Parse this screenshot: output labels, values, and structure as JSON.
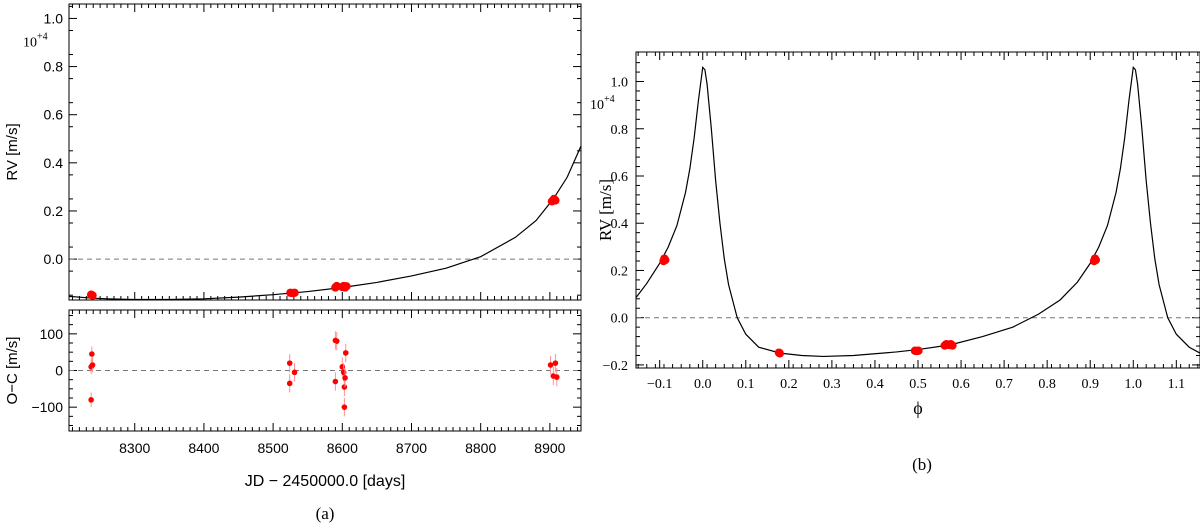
{
  "chart_data": [
    {
      "type": "line",
      "subplot": "top",
      "xlim": [
        8205,
        8945
      ],
      "ylim": [
        -0.17,
        1.06
      ],
      "ylabel": "RV [m/s]",
      "y_multiplier": "10",
      "y_exponent": "+4",
      "yticks": [
        0.0,
        0.2,
        0.4,
        0.6,
        0.8,
        1.0
      ],
      "ytick_labels": [
        "0.0",
        "0.2",
        "0.4",
        "0.6",
        "0.8",
        "1.0"
      ],
      "zero_line": "dashed",
      "model_curve": {
        "x": [
          8205,
          8237,
          8260,
          8300,
          8350,
          8400,
          8450,
          8500,
          8550,
          8600,
          8650,
          8700,
          8750,
          8800,
          8850,
          8880,
          8905,
          8925,
          8945
        ],
        "y": [
          -0.155,
          -0.162,
          -0.165,
          -0.168,
          -0.168,
          -0.165,
          -0.158,
          -0.148,
          -0.135,
          -0.118,
          -0.097,
          -0.07,
          -0.038,
          0.01,
          0.09,
          0.16,
          0.25,
          0.34,
          0.47
        ]
      },
      "points": [
        {
          "x": 8237,
          "y": -0.148
        },
        {
          "x": 8238,
          "y": -0.15
        },
        {
          "x": 8239,
          "y": -0.151
        },
        {
          "x": 8525,
          "y": -0.14
        },
        {
          "x": 8528,
          "y": -0.141
        },
        {
          "x": 8531,
          "y": -0.14
        },
        {
          "x": 8590,
          "y": -0.118
        },
        {
          "x": 8592,
          "y": -0.112
        },
        {
          "x": 8600,
          "y": -0.116
        },
        {
          "x": 8602,
          "y": -0.112
        },
        {
          "x": 8604,
          "y": -0.118
        },
        {
          "x": 8606,
          "y": -0.113
        },
        {
          "x": 8903,
          "y": 0.24
        },
        {
          "x": 8906,
          "y": 0.25
        },
        {
          "x": 8908,
          "y": 0.244
        }
      ]
    },
    {
      "type": "scatter",
      "subplot": "bottom",
      "xlim": [
        8205,
        8945
      ],
      "ylim": [
        -165,
        165
      ],
      "xlabel": "JD − 2450000.0 [days]",
      "ylabel": "O−C [m/s]",
      "xticks": [
        8300,
        8400,
        8500,
        8600,
        8700,
        8800,
        8900
      ],
      "xtick_labels": [
        "8300",
        "8400",
        "8500",
        "8600",
        "8700",
        "8800",
        "8900"
      ],
      "yticks": [
        -100,
        0,
        100
      ],
      "ytick_labels": [
        "−100",
        "0",
        "100"
      ],
      "zero_line": "dashed",
      "points": [
        {
          "x": 8237,
          "y": 10,
          "err": 20
        },
        {
          "x": 8238,
          "y": 45,
          "err": 20
        },
        {
          "x": 8237,
          "y": -80,
          "err": 20
        },
        {
          "x": 8239,
          "y": 15,
          "err": 20
        },
        {
          "x": 8524,
          "y": 20,
          "err": 25
        },
        {
          "x": 8524,
          "y": -35,
          "err": 25
        },
        {
          "x": 8531,
          "y": -5,
          "err": 25
        },
        {
          "x": 8592,
          "y": 80,
          "err": 25
        },
        {
          "x": 8590,
          "y": 82,
          "err": 25
        },
        {
          "x": 8590,
          "y": -30,
          "err": 25
        },
        {
          "x": 8600,
          "y": 10,
          "err": 25
        },
        {
          "x": 8602,
          "y": -5,
          "err": 25
        },
        {
          "x": 8603,
          "y": -45,
          "err": 25
        },
        {
          "x": 8605,
          "y": 48,
          "err": 25
        },
        {
          "x": 8603,
          "y": -100,
          "err": 25
        },
        {
          "x": 8604,
          "y": -20,
          "err": 25
        },
        {
          "x": 8901,
          "y": 15,
          "err": 25
        },
        {
          "x": 8905,
          "y": -15,
          "err": 25
        },
        {
          "x": 8908,
          "y": 20,
          "err": 25
        },
        {
          "x": 8910,
          "y": -18,
          "err": 25
        }
      ]
    },
    {
      "type": "line",
      "subplot": "phase",
      "xlim": [
        -0.155,
        1.155
      ],
      "ylim": [
        -0.213,
        1.125
      ],
      "xlabel": "ϕ",
      "ylabel": "RV [m/s]",
      "y_multiplier": "10",
      "y_exponent": "+4",
      "xticks": [
        -0.1,
        0.0,
        0.1,
        0.2,
        0.3,
        0.4,
        0.5,
        0.6,
        0.7,
        0.8,
        0.9,
        1.0,
        1.1
      ],
      "xtick_labels": [
        "−0.1",
        "0.0",
        "0.1",
        "0.2",
        "0.3",
        "0.4",
        "0.5",
        "0.6",
        "0.7",
        "0.8",
        "0.9",
        "1.0",
        "1.1"
      ],
      "yticks": [
        -0.2,
        0.0,
        0.2,
        0.4,
        0.6,
        0.8,
        1.0
      ],
      "ytick_labels": [
        "−0.2",
        "0.0",
        "0.2",
        "0.4",
        "0.6",
        "0.8",
        "1.0"
      ],
      "zero_line": "dashed",
      "model_curve": {
        "x": [
          -0.155,
          -0.13,
          -0.1,
          -0.08,
          -0.06,
          -0.04,
          -0.03,
          -0.02,
          -0.01,
          0.0,
          0.005,
          0.01,
          0.02,
          0.03,
          0.04,
          0.05,
          0.06,
          0.08,
          0.1,
          0.13,
          0.18,
          0.23,
          0.28,
          0.35,
          0.45,
          0.5,
          0.575,
          0.65,
          0.72,
          0.78,
          0.83,
          0.87,
          0.9,
          0.92,
          0.94,
          0.96,
          0.97,
          0.98,
          0.99,
          1.0,
          1.005,
          1.01,
          1.02,
          1.03,
          1.04,
          1.05,
          1.06,
          1.08,
          1.1,
          1.13,
          1.155
        ],
        "y": [
          0.085,
          0.145,
          0.23,
          0.3,
          0.39,
          0.53,
          0.63,
          0.76,
          0.92,
          1.06,
          1.05,
          0.99,
          0.8,
          0.58,
          0.4,
          0.25,
          0.14,
          0.0,
          -0.07,
          -0.125,
          -0.15,
          -0.16,
          -0.164,
          -0.16,
          -0.145,
          -0.135,
          -0.115,
          -0.08,
          -0.04,
          0.015,
          0.075,
          0.15,
          0.23,
          0.3,
          0.39,
          0.53,
          0.63,
          0.76,
          0.92,
          1.06,
          1.05,
          0.99,
          0.8,
          0.58,
          0.4,
          0.25,
          0.14,
          0.0,
          -0.07,
          -0.125,
          -0.15
        ]
      },
      "points": [
        {
          "x": -0.091,
          "y": 0.24
        },
        {
          "x": -0.089,
          "y": 0.25
        },
        {
          "x": -0.087,
          "y": 0.244
        },
        {
          "x": 0.177,
          "y": -0.148
        },
        {
          "x": 0.179,
          "y": -0.151
        },
        {
          "x": 0.493,
          "y": -0.14
        },
        {
          "x": 0.497,
          "y": -0.141
        },
        {
          "x": 0.501,
          "y": -0.14
        },
        {
          "x": 0.562,
          "y": -0.118
        },
        {
          "x": 0.566,
          "y": -0.112
        },
        {
          "x": 0.572,
          "y": -0.116
        },
        {
          "x": 0.576,
          "y": -0.112
        },
        {
          "x": 0.58,
          "y": -0.118
        },
        {
          "x": 0.909,
          "y": 0.24
        },
        {
          "x": 0.911,
          "y": 0.25
        },
        {
          "x": 0.913,
          "y": 0.244
        }
      ]
    }
  ],
  "captions": {
    "left": "(a)",
    "right": "(b)"
  },
  "colors": {
    "points": "#ff0000",
    "errorbars": "#ff9090",
    "curve": "#000000",
    "zero_line": "#777777"
  }
}
